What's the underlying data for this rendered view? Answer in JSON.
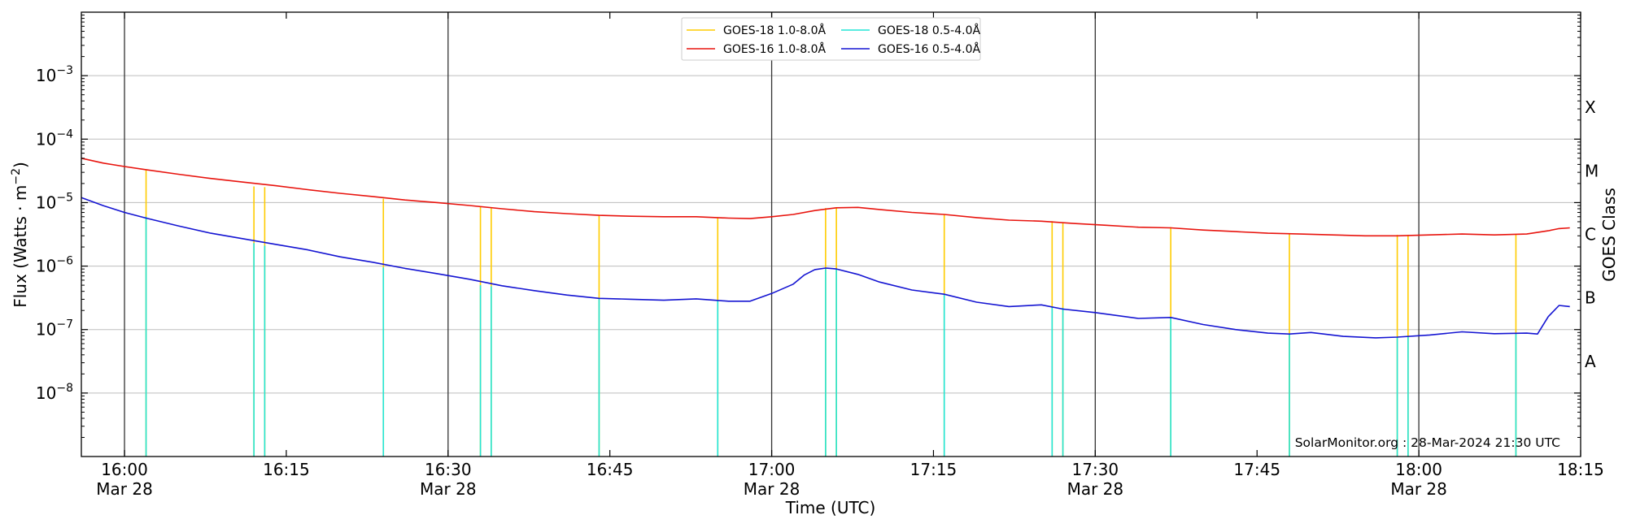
{
  "chart_data": {
    "type": "line",
    "xlabel": "Time (UTC)",
    "ylabel_main": "Flux (Watts · m",
    "ylabel_sup": "−2",
    "ylabel_close": ")",
    "right_axis_label": "GOES Class",
    "watermark": "SolarMonitor.org : 28-Mar-2024 21:30 UTC",
    "x_range": [
      "15:56",
      "18:15"
    ],
    "y_range": [
      1e-09,
      0.01
    ],
    "y_scale": "log",
    "grid": "horizontal",
    "legend_position": "top-center",
    "x_ticks": [
      {
        "time": "16:00",
        "line1": "16:00",
        "line2": "Mar 28",
        "major": true
      },
      {
        "time": "16:15",
        "line1": "16:15",
        "line2": "",
        "major": false
      },
      {
        "time": "16:30",
        "line1": "16:30",
        "line2": "Mar 28",
        "major": true
      },
      {
        "time": "16:45",
        "line1": "16:45",
        "line2": "",
        "major": false
      },
      {
        "time": "17:00",
        "line1": "17:00",
        "line2": "Mar 28",
        "major": true
      },
      {
        "time": "17:15",
        "line1": "17:15",
        "line2": "",
        "major": false
      },
      {
        "time": "17:30",
        "line1": "17:30",
        "line2": "Mar 28",
        "major": true
      },
      {
        "time": "17:45",
        "line1": "17:45",
        "line2": "",
        "major": false
      },
      {
        "time": "18:00",
        "line1": "18:00",
        "line2": "Mar 28",
        "major": true
      },
      {
        "time": "18:15",
        "line1": "18:15",
        "line2": "",
        "major": false
      }
    ],
    "y_ticks": [
      {
        "exp": -8,
        "base": "10",
        "sup": "−8"
      },
      {
        "exp": -7,
        "base": "10",
        "sup": "−7"
      },
      {
        "exp": -6,
        "base": "10",
        "sup": "−6"
      },
      {
        "exp": -5,
        "base": "10",
        "sup": "−5"
      },
      {
        "exp": -4,
        "base": "10",
        "sup": "−4"
      },
      {
        "exp": -3,
        "base": "10",
        "sup": "−3"
      }
    ],
    "goes_classes": [
      {
        "label": "A",
        "exp": -7.5
      },
      {
        "label": "B",
        "exp": -6.5
      },
      {
        "label": "C",
        "exp": -5.5
      },
      {
        "label": "M",
        "exp": -4.5
      },
      {
        "label": "X",
        "exp": -3.5
      }
    ],
    "series": [
      {
        "name": "GOES-18 1.0-8.0Å",
        "color": "#ffcc00",
        "style": "spikes",
        "times": [
          "16:02",
          "16:12",
          "16:13",
          "16:24",
          "16:33",
          "16:34",
          "16:44",
          "16:55",
          "17:05",
          "17:06",
          "17:16",
          "17:26",
          "17:27",
          "17:37",
          "17:48",
          "17:58",
          "17:59",
          "18:09"
        ],
        "values": [
          3.3e-05,
          1.8e-05,
          1.75e-05,
          1.15e-05,
          8.5e-06,
          8.2e-06,
          6.2e-06,
          5.8e-06,
          8.2e-06,
          8.3e-06,
          6.5e-06,
          5.1e-06,
          4.9e-06,
          4.1e-06,
          3.3e-06,
          3.1e-06,
          3.1e-06,
          3.2e-06
        ]
      },
      {
        "name": "GOES-18 0.5-4.0Å",
        "color": "#22e5d6",
        "style": "spikes",
        "times": [
          "16:02",
          "16:12",
          "16:13",
          "16:24",
          "16:33",
          "16:34",
          "16:44",
          "16:55",
          "17:05",
          "17:06",
          "17:16",
          "17:26",
          "17:27",
          "17:37",
          "17:48",
          "17:58",
          "17:59",
          "18:09"
        ],
        "values": [
          6e-06,
          2.3e-06,
          2.1e-06,
          9.5e-07,
          5e-07,
          4.8e-07,
          3.1e-07,
          2.9e-07,
          9e-07,
          9.1e-07,
          3.6e-07,
          2.3e-07,
          2.2e-07,
          1.55e-07,
          8.5e-08,
          7.5e-08,
          7.8e-08,
          8.8e-08
        ]
      },
      {
        "name": "GOES-16 1.0-8.0Å",
        "color": "#e8140e",
        "style": "line",
        "times": [
          "15:56",
          "15:58",
          "16:00",
          "16:02",
          "16:05",
          "16:08",
          "16:11",
          "16:14",
          "16:17",
          "16:20",
          "16:23",
          "16:26",
          "16:29",
          "16:32",
          "16:35",
          "16:38",
          "16:41",
          "16:44",
          "16:47",
          "16:50",
          "16:53",
          "16:56",
          "16:58",
          "17:00",
          "17:02",
          "17:04",
          "17:06",
          "17:08",
          "17:10",
          "17:13",
          "17:16",
          "17:19",
          "17:22",
          "17:25",
          "17:28",
          "17:31",
          "17:34",
          "17:37",
          "17:40",
          "17:43",
          "17:46",
          "17:49",
          "17:52",
          "17:55",
          "17:58",
          "18:01",
          "18:04",
          "18:07",
          "18:10",
          "18:12",
          "18:13",
          "18:14"
        ],
        "values": [
          5e-05,
          4.2e-05,
          3.7e-05,
          3.3e-05,
          2.8e-05,
          2.4e-05,
          2.1e-05,
          1.85e-05,
          1.6e-05,
          1.4e-05,
          1.25e-05,
          1.1e-05,
          1e-05,
          9e-06,
          8e-06,
          7.2e-06,
          6.7e-06,
          6.3e-06,
          6.1e-06,
          6e-06,
          6e-06,
          5.7e-06,
          5.6e-06,
          6e-06,
          6.5e-06,
          7.5e-06,
          8.3e-06,
          8.4e-06,
          7.8e-06,
          7e-06,
          6.5e-06,
          5.8e-06,
          5.3e-06,
          5.1e-06,
          4.7e-06,
          4.4e-06,
          4.1e-06,
          4e-06,
          3.7e-06,
          3.5e-06,
          3.3e-06,
          3.2e-06,
          3.1e-06,
          3e-06,
          3e-06,
          3.1e-06,
          3.2e-06,
          3.1e-06,
          3.2e-06,
          3.6e-06,
          3.9e-06,
          4e-06
        ]
      },
      {
        "name": "GOES-16 0.5-4.0Å",
        "color": "#1414d2",
        "style": "line",
        "times": [
          "15:56",
          "15:58",
          "16:00",
          "16:02",
          "16:05",
          "16:08",
          "16:11",
          "16:14",
          "16:17",
          "16:20",
          "16:23",
          "16:26",
          "16:29",
          "16:32",
          "16:35",
          "16:38",
          "16:41",
          "16:44",
          "16:47",
          "16:50",
          "16:53",
          "16:56",
          "16:58",
          "17:00",
          "17:02",
          "17:03",
          "17:04",
          "17:05",
          "17:06",
          "17:08",
          "17:10",
          "17:13",
          "17:16",
          "17:19",
          "17:22",
          "17:25",
          "17:27",
          "17:30",
          "17:34",
          "17:37",
          "17:40",
          "17:43",
          "17:46",
          "17:48",
          "17:50",
          "17:53",
          "17:56",
          "17:58",
          "18:01",
          "18:04",
          "18:07",
          "18:10",
          "18:11",
          "18:12",
          "18:13",
          "18:14"
        ],
        "values": [
          1.2e-05,
          9e-06,
          7e-06,
          5.7e-06,
          4.3e-06,
          3.3e-06,
          2.7e-06,
          2.2e-06,
          1.8e-06,
          1.4e-06,
          1.15e-06,
          9.2e-07,
          7.6e-07,
          6.2e-07,
          4.9e-07,
          4.1e-07,
          3.5e-07,
          3.1e-07,
          3e-07,
          2.9e-07,
          3.05e-07,
          2.8e-07,
          2.8e-07,
          3.7e-07,
          5.2e-07,
          7.2e-07,
          8.8e-07,
          9.3e-07,
          9e-07,
          7.4e-07,
          5.6e-07,
          4.2e-07,
          3.6e-07,
          2.7e-07,
          2.3e-07,
          2.45e-07,
          2.1e-07,
          1.85e-07,
          1.5e-07,
          1.55e-07,
          1.2e-07,
          1e-07,
          8.8e-08,
          8.5e-08,
          9e-08,
          7.8e-08,
          7.4e-08,
          7.6e-08,
          8.2e-08,
          9.2e-08,
          8.6e-08,
          8.8e-08,
          8.5e-08,
          1.6e-07,
          2.4e-07,
          2.3e-07
        ]
      }
    ]
  }
}
